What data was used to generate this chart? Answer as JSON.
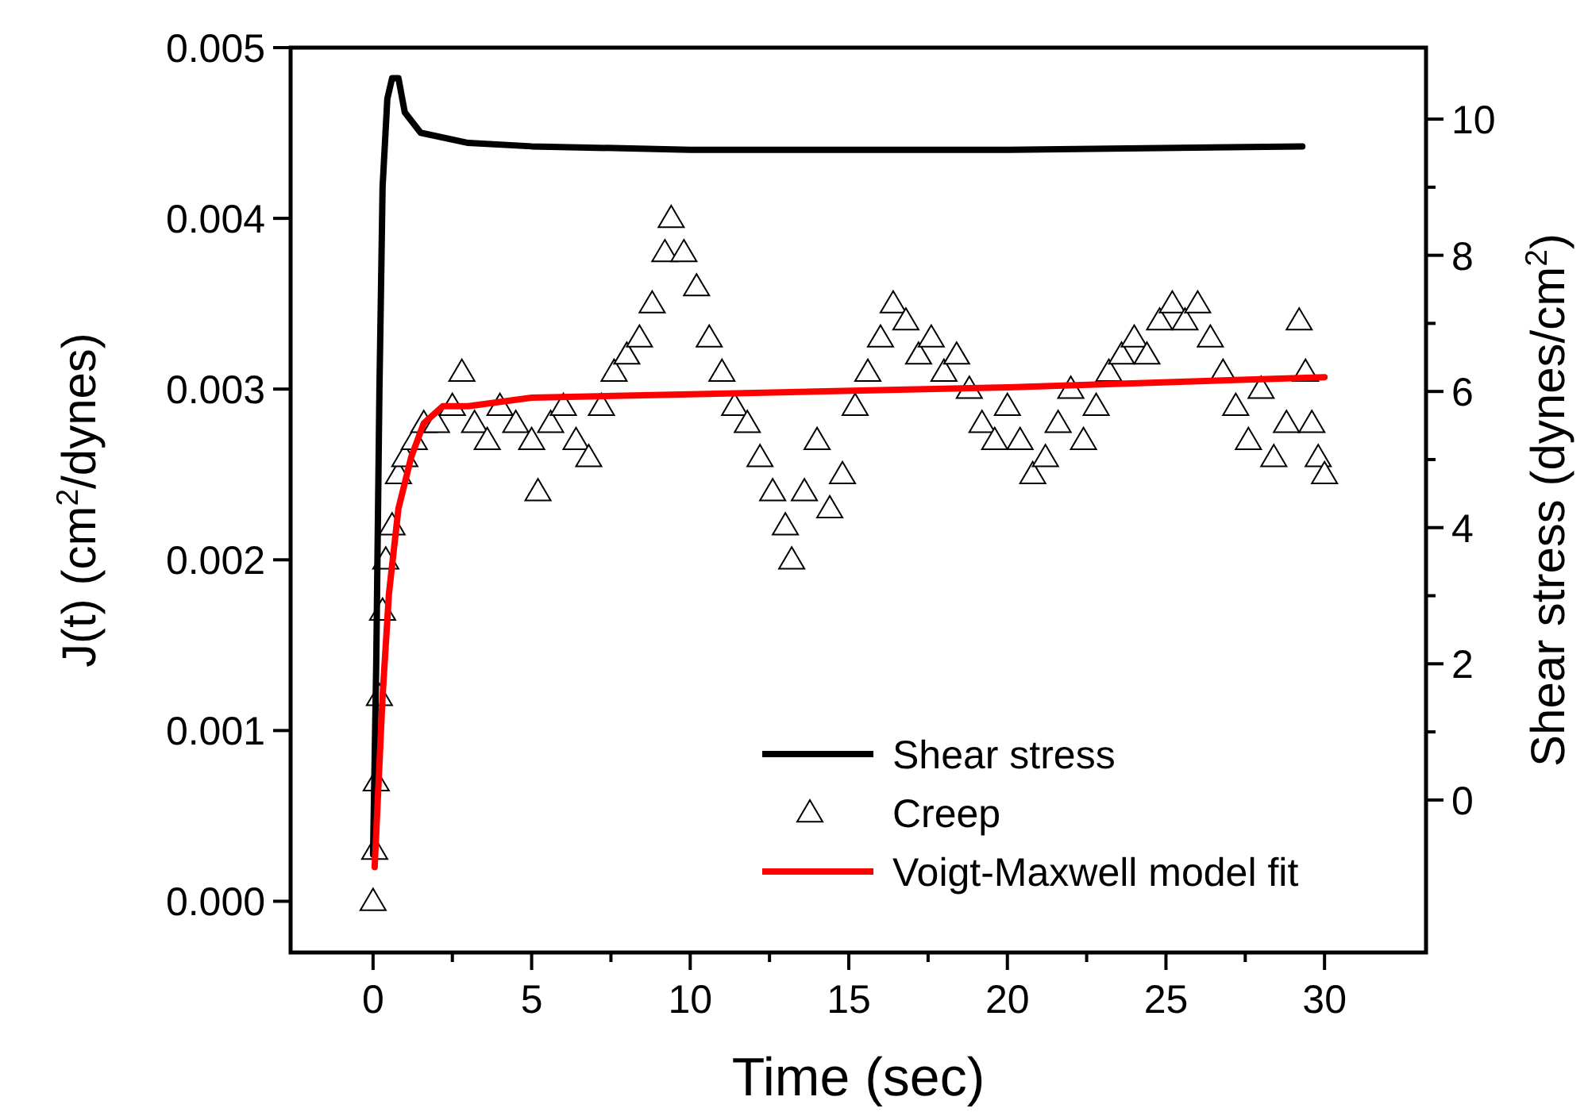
{
  "chart_data": {
    "type": "line",
    "xlabel": "Time (sec)",
    "ylabel": "J(t) (cm$^{2}$/dynes)",
    "y2label": "Shear stress (dynes/cm$^{2}$)",
    "xlim": [
      -2.6,
      33.2
    ],
    "ylim": [
      -0.0003,
      0.005
    ],
    "y2lim": [
      -2.24,
      11.05
    ],
    "xticks": [
      0,
      {
        "value": 2.5,
        "label": null
      },
      5,
      {
        "value": 7.5,
        "label": null
      },
      10,
      {
        "value": 12.5,
        "label": null
      },
      15,
      {
        "value": 17.5,
        "label": null
      },
      20,
      {
        "value": 22.5,
        "label": null
      },
      25,
      {
        "value": 27.5,
        "label": null
      },
      30
    ],
    "yticks": [
      {
        "value": 0,
        "label": "0.000"
      },
      {
        "value": 0.001,
        "label": "0.001"
      },
      {
        "value": 0.002,
        "label": "0.002"
      },
      {
        "value": 0.003,
        "label": "0.003"
      },
      {
        "value": 0.004,
        "label": "0.004"
      },
      {
        "value": 0.005,
        "label": "0.005"
      }
    ],
    "y2ticks": [
      0,
      {
        "value": 1,
        "label": null
      },
      2,
      {
        "value": 3,
        "label": null
      },
      4,
      {
        "value": 5,
        "label": null
      },
      6,
      {
        "value": 7,
        "label": null
      },
      8,
      {
        "value": 9,
        "label": null
      },
      10
    ],
    "legend": "bottom right",
    "grid": false,
    "series": [
      {
        "name": "Shear stress",
        "axis": "y2",
        "color": "#000000",
        "line_style": "solid",
        "x": [
          0,
          0.1,
          0.2,
          0.3,
          0.45,
          0.6,
          0.8,
          1.0,
          1.5,
          3,
          5,
          10,
          20,
          29.3
        ],
        "values": [
          -0.8,
          2,
          6,
          9,
          10.3,
          10.6,
          10.6,
          10.1,
          9.8,
          9.65,
          9.6,
          9.55,
          9.55,
          9.6
        ]
      },
      {
        "name": "Creep",
        "type": "scatter",
        "marker": "triangle",
        "color": "#000000",
        "x": [
          0,
          0.05,
          0.1,
          0.2,
          0.3,
          0.4,
          0.6,
          0.8,
          1.0,
          1.3,
          1.6,
          2.0,
          2.5,
          2.8,
          3.2,
          3.6,
          4.0,
          4.5,
          5.0,
          5.2,
          5.6,
          6.0,
          6.4,
          6.8,
          7.2,
          7.6,
          8.0,
          8.4,
          8.8,
          9.2,
          9.4,
          9.8,
          10.2,
          10.6,
          11.0,
          11.4,
          11.8,
          12.2,
          12.6,
          13.0,
          13.2,
          13.6,
          14.0,
          14.4,
          14.8,
          15.2,
          15.6,
          16.0,
          16.4,
          16.8,
          17.2,
          17.6,
          18.0,
          18.4,
          18.8,
          19.2,
          19.6,
          20.0,
          20.4,
          20.8,
          21.2,
          21.6,
          22.0,
          22.4,
          22.8,
          23.2,
          23.6,
          24.0,
          24.4,
          24.8,
          25.2,
          25.6,
          26.0,
          26.4,
          26.8,
          27.2,
          27.6,
          28.0,
          28.4,
          28.8,
          29.2,
          29.4,
          29.6,
          29.8,
          30.0
        ],
        "values": [
          0.0,
          0.0003,
          0.0007,
          0.0012,
          0.0017,
          0.002,
          0.0022,
          0.0025,
          0.0026,
          0.0027,
          0.0028,
          0.0028,
          0.0029,
          0.0031,
          0.0028,
          0.0027,
          0.0029,
          0.0028,
          0.0027,
          0.0024,
          0.0028,
          0.0029,
          0.0027,
          0.0026,
          0.0029,
          0.0031,
          0.0032,
          0.0033,
          0.0035,
          0.0038,
          0.004,
          0.0038,
          0.0036,
          0.0033,
          0.0031,
          0.0029,
          0.0028,
          0.0026,
          0.0024,
          0.0022,
          0.002,
          0.0024,
          0.0027,
          0.0023,
          0.0025,
          0.0029,
          0.0031,
          0.0033,
          0.0035,
          0.0034,
          0.0032,
          0.0033,
          0.0031,
          0.0032,
          0.003,
          0.0028,
          0.0027,
          0.0029,
          0.0027,
          0.0025,
          0.0026,
          0.0028,
          0.003,
          0.0027,
          0.0029,
          0.0031,
          0.0032,
          0.0033,
          0.0032,
          0.0034,
          0.0035,
          0.0034,
          0.0035,
          0.0033,
          0.0031,
          0.0029,
          0.0027,
          0.003,
          0.0026,
          0.0028,
          0.0034,
          0.0031,
          0.0028,
          0.0026,
          0.0025
        ]
      },
      {
        "name": "Voigt-Maxwell model fit",
        "color": "#ff0000",
        "line_style": "solid",
        "x": [
          0.05,
          0.3,
          0.5,
          0.8,
          1.2,
          1.6,
          2.2,
          3,
          5,
          10,
          20,
          30
        ],
        "values": [
          0.0002,
          0.0012,
          0.0018,
          0.0023,
          0.0026,
          0.0028,
          0.0029,
          0.0029,
          0.00295,
          0.00297,
          0.00301,
          0.00307
        ]
      }
    ]
  }
}
